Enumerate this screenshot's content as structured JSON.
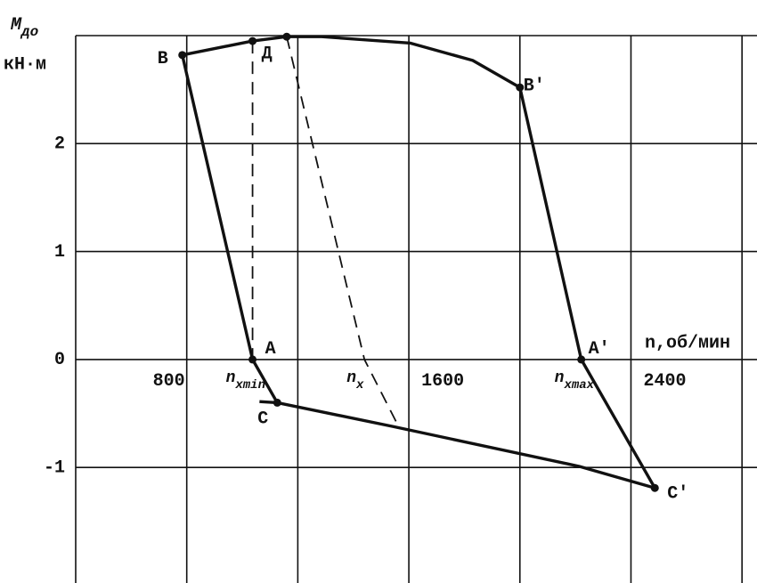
{
  "chart_data": {
    "type": "line",
    "y_label": {
      "main": "M",
      "sub": "до",
      "unit": "кН·м"
    },
    "x_label": "n,об/мин",
    "xlim": [
      400,
      2854
    ],
    "ylim": [
      -2.07,
      3.0
    ],
    "xticks": [
      800,
      1600,
      2400
    ],
    "xgrid_extra": [
      1200,
      2000,
      2800
    ],
    "yticks": [
      -1,
      0,
      1,
      2
    ],
    "grid": true,
    "color": "#111111",
    "series": [
      {
        "x": [
          1126,
          1037,
          784,
          1037,
          1160,
          1286,
          1606,
          1830,
          2000,
          2221,
          2486,
          2214,
          1542,
          1126,
          1062
        ],
        "values": [
          -0.4,
          0,
          2.82,
          2.95,
          2.99,
          2.99,
          2.93,
          2.77,
          2.52,
          0,
          -1.19,
          -0.99,
          -0.62,
          -0.4,
          -0.39
        ],
        "style": "solid"
      },
      {
        "x": [
          1037,
          1037
        ],
        "values": [
          2.95,
          0
        ],
        "style": "dashed"
      },
      {
        "x": [
          1160,
          1440,
          1555
        ],
        "values": [
          2.99,
          0,
          -0.58
        ],
        "style": "dashed"
      }
    ],
    "points": [
      {
        "label": "B",
        "x": 784,
        "y": 2.82
      },
      {
        "label": "Д",
        "x": 1037,
        "y": 2.95
      },
      {
        "label": null,
        "x": 1160,
        "y": 2.99
      },
      {
        "label": "B′",
        "x": 2000,
        "y": 2.52
      },
      {
        "label": "A",
        "x": 1037,
        "y": 0
      },
      {
        "label": "A′",
        "x": 2221,
        "y": 0
      },
      {
        "label": "C",
        "x": 1126,
        "y": -0.4
      },
      {
        "label": "C′",
        "x": 2486,
        "y": -1.19
      }
    ],
    "axis_marks": [
      {
        "main": "n",
        "sub": "xmin",
        "x": 1037
      },
      {
        "main": "n",
        "sub": "x",
        "x": 1440
      },
      {
        "main": "n",
        "sub": "xmax",
        "x": 2221
      }
    ]
  }
}
